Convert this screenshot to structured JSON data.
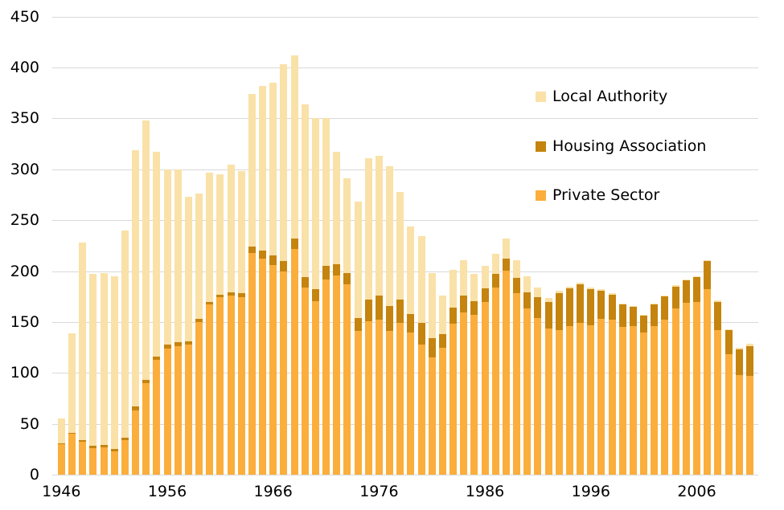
{
  "chart_data": {
    "type": "bar",
    "stacked": true,
    "title": "",
    "xlabel": "",
    "ylabel": "",
    "x": [
      1946,
      1947,
      1948,
      1949,
      1950,
      1951,
      1952,
      1953,
      1954,
      1955,
      1956,
      1957,
      1958,
      1959,
      1960,
      1961,
      1962,
      1963,
      1964,
      1965,
      1966,
      1967,
      1968,
      1969,
      1970,
      1971,
      1972,
      1973,
      1974,
      1975,
      1976,
      1977,
      1978,
      1979,
      1980,
      1981,
      1982,
      1983,
      1984,
      1985,
      1986,
      1987,
      1988,
      1989,
      1990,
      1991,
      1992,
      1993,
      1994,
      1995,
      1996,
      1997,
      1998,
      1999,
      2000,
      2001,
      2002,
      2003,
      2004,
      2005,
      2006,
      2007,
      2008,
      2009,
      2010,
      2011
    ],
    "series": [
      {
        "name": "Private Sector",
        "color": "#FBAE3B",
        "values": [
          30,
          40,
          32,
          26,
          27,
          23,
          34,
          63,
          90,
          113,
          124,
          126,
          128,
          150,
          167,
          174,
          176,
          174,
          218,
          212,
          206,
          200,
          222,
          184,
          170,
          192,
          196,
          187,
          141,
          151,
          152,
          141,
          149,
          140,
          128,
          115,
          125,
          148,
          159,
          157,
          170,
          184,
          200,
          178,
          163,
          154,
          144,
          142,
          146,
          149,
          147,
          153,
          152,
          145,
          146,
          140,
          146,
          152,
          163,
          169,
          170,
          182,
          142,
          118,
          98,
          97
        ]
      },
      {
        "name": "Housing Association",
        "color": "#C5840E",
        "values": [
          1,
          1,
          2,
          2,
          2,
          2,
          2,
          4,
          3,
          3,
          4,
          4,
          3,
          3,
          3,
          3,
          3,
          4,
          6,
          8,
          9,
          10,
          10,
          10,
          12,
          13,
          11,
          11,
          13,
          21,
          24,
          25,
          23,
          18,
          21,
          19,
          13,
          16,
          17,
          13,
          13,
          13,
          12,
          15,
          16,
          20,
          26,
          36,
          37,
          38,
          35,
          28,
          25,
          22,
          19,
          16,
          21,
          23,
          22,
          22,
          24,
          28,
          28,
          24,
          25,
          29
        ]
      },
      {
        "name": "Local Authority",
        "color": "#F9E1A8",
        "values": [
          24,
          98,
          194,
          169,
          169,
          170,
          204,
          252,
          255,
          201,
          172,
          170,
          142,
          123,
          127,
          118,
          126,
          120,
          150,
          162,
          170,
          193,
          180,
          170,
          168,
          145,
          110,
          93,
          114,
          139,
          137,
          137,
          106,
          86,
          85,
          64,
          38,
          37,
          35,
          27,
          22,
          20,
          20,
          18,
          16,
          10,
          4,
          3,
          2,
          2,
          2,
          1,
          1,
          1,
          1,
          1,
          1,
          1,
          1,
          1,
          1,
          1,
          1,
          1,
          2,
          3
        ]
      }
    ],
    "y_axis": {
      "min": 0,
      "max": 450,
      "tick_step": 50,
      "ticks": [
        0,
        50,
        100,
        150,
        200,
        250,
        300,
        350,
        400,
        450
      ]
    },
    "x_axis": {
      "tick_labels": [
        "1946",
        "1956",
        "1966",
        "1976",
        "1986",
        "1996",
        "2006"
      ],
      "tick_years": [
        1946,
        1956,
        1966,
        1976,
        1986,
        1996,
        2006
      ]
    },
    "legend": {
      "position": "inside-right",
      "items": [
        {
          "label": "Local Authority",
          "series_index": 2
        },
        {
          "label": "Housing Association",
          "series_index": 1
        },
        {
          "label": "Private Sector",
          "series_index": 0
        }
      ]
    },
    "gridlines": {
      "horizontal": true,
      "color": "#D9D9D9"
    },
    "text_color": "#000000",
    "background_color": "#FFFFFF"
  }
}
